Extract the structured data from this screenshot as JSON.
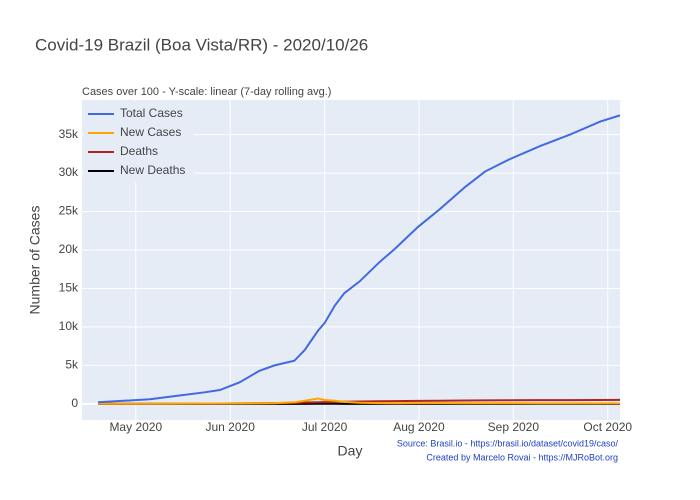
{
  "chart_data": {
    "type": "line",
    "title": "Covid-19 Brazil (Boa Vista/RR) - 2020/10/26",
    "subtitle": "Cases over 100 - Y-scale: linear (7-day rolling avg.)",
    "x_label": "Day",
    "y_label": "Number of Cases",
    "annotations": [
      "Source: Brasil.io - https://brasil.io/dataset/covid19/caso/",
      "Created by Marcelo Rovai - https://MJRoBot.org"
    ],
    "x": [
      4.6,
      5.15,
      5.41,
      5.73,
      5.89,
      6.1,
      6.31,
      6.47,
      6.68,
      6.79,
      6.93,
      7.0,
      7.11,
      7.21,
      7.37,
      7.58,
      7.74,
      7.99,
      8.22,
      8.49,
      8.7,
      8.96,
      9.28,
      9.6,
      9.92,
      10.13
    ],
    "xlim": [
      4.43,
      10.13
    ],
    "xticks": [
      {
        "value": 5,
        "label": "May 2020"
      },
      {
        "value": 6,
        "label": "Jun 2020"
      },
      {
        "value": 7,
        "label": "Jul 2020"
      },
      {
        "value": 8,
        "label": "Aug 2020"
      },
      {
        "value": 9,
        "label": "Sep 2020"
      },
      {
        "value": 10,
        "label": "Oct 2020"
      }
    ],
    "ylim": [
      -2100,
      39500
    ],
    "yticks": [
      0,
      {
        "value": 5000,
        "label": "5k"
      },
      {
        "value": 10000,
        "label": "10k"
      },
      {
        "value": 15000,
        "label": "15k"
      },
      {
        "value": 20000,
        "label": "20k"
      },
      {
        "value": 25000,
        "label": "25k"
      },
      {
        "value": 30000,
        "label": "30k"
      },
      {
        "value": 35000,
        "label": "35k"
      }
    ],
    "grid": true,
    "legend": "top-left",
    "series": [
      {
        "name": "Total Cases",
        "color": "#4169e1",
        "values": [
          200,
          600,
          1000,
          1500,
          1800,
          2800,
          4300,
          5000,
          5600,
          7000,
          9500,
          10500,
          12800,
          14400,
          15900,
          18400,
          20100,
          23000,
          25300,
          28200,
          30200,
          31800,
          33500,
          35000,
          36700,
          37500
        ]
      },
      {
        "name": "New Cases",
        "color": "#ffa500",
        "values": [
          10,
          20,
          30,
          40,
          40,
          60,
          80,
          100,
          200,
          400,
          700,
          500,
          400,
          250,
          150,
          100,
          80,
          100,
          90,
          80,
          70,
          70,
          60,
          60,
          60,
          60
        ]
      },
      {
        "name": "Deaths",
        "color": "#b22222",
        "values": [
          2,
          10,
          20,
          30,
          40,
          60,
          80,
          100,
          130,
          170,
          200,
          230,
          260,
          280,
          310,
          340,
          360,
          390,
          410,
          430,
          450,
          460,
          480,
          490,
          500,
          510
        ]
      },
      {
        "name": "New Deaths",
        "color": "#000000",
        "values": [
          0,
          1,
          1,
          1,
          1,
          2,
          2,
          3,
          3,
          4,
          5,
          5,
          5,
          4,
          4,
          3,
          3,
          3,
          2,
          2,
          2,
          2,
          2,
          2,
          2,
          2
        ]
      }
    ]
  }
}
